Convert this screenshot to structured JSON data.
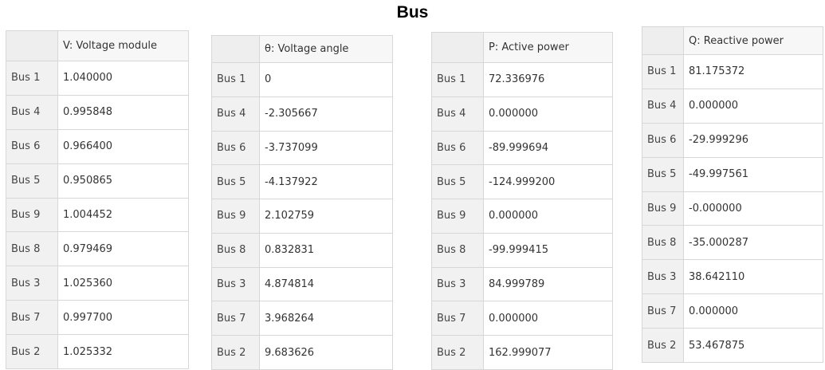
{
  "page_title": "Bus",
  "tables": [
    {
      "header": "V: Voltage module",
      "rows": [
        {
          "bus": "Bus 1",
          "value": "1.040000"
        },
        {
          "bus": "Bus 4",
          "value": "0.995848"
        },
        {
          "bus": "Bus 6",
          "value": "0.966400"
        },
        {
          "bus": "Bus 5",
          "value": "0.950865"
        },
        {
          "bus": "Bus 9",
          "value": "1.004452"
        },
        {
          "bus": "Bus 8",
          "value": "0.979469"
        },
        {
          "bus": "Bus 3",
          "value": "1.025360"
        },
        {
          "bus": "Bus 7",
          "value": "0.997700"
        },
        {
          "bus": "Bus 2",
          "value": "1.025332"
        }
      ]
    },
    {
      "header": "θ: Voltage angle",
      "rows": [
        {
          "bus": "Bus 1",
          "value": "0"
        },
        {
          "bus": "Bus 4",
          "value": "-2.305667"
        },
        {
          "bus": "Bus 6",
          "value": "-3.737099"
        },
        {
          "bus": "Bus 5",
          "value": "-4.137922"
        },
        {
          "bus": "Bus 9",
          "value": "2.102759"
        },
        {
          "bus": "Bus 8",
          "value": "0.832831"
        },
        {
          "bus": "Bus 3",
          "value": "4.874814"
        },
        {
          "bus": "Bus 7",
          "value": "3.968264"
        },
        {
          "bus": "Bus 2",
          "value": "9.683626"
        }
      ]
    },
    {
      "header": "P: Active power",
      "rows": [
        {
          "bus": "Bus 1",
          "value": "72.336976"
        },
        {
          "bus": "Bus 4",
          "value": "0.000000"
        },
        {
          "bus": "Bus 6",
          "value": "-89.999694"
        },
        {
          "bus": "Bus 5",
          "value": "-124.999200"
        },
        {
          "bus": "Bus 9",
          "value": "0.000000"
        },
        {
          "bus": "Bus 8",
          "value": "-99.999415"
        },
        {
          "bus": "Bus 3",
          "value": "84.999789"
        },
        {
          "bus": "Bus 7",
          "value": "0.000000"
        },
        {
          "bus": "Bus 2",
          "value": "162.999077"
        }
      ]
    },
    {
      "header": "Q: Reactive power",
      "rows": [
        {
          "bus": "Bus 1",
          "value": "81.175372"
        },
        {
          "bus": "Bus 4",
          "value": "0.000000"
        },
        {
          "bus": "Bus 6",
          "value": "-29.999296"
        },
        {
          "bus": "Bus 5",
          "value": "-49.997561"
        },
        {
          "bus": "Bus 9",
          "value": "-0.000000"
        },
        {
          "bus": "Bus 8",
          "value": "-35.000287"
        },
        {
          "bus": "Bus 3",
          "value": "38.642110"
        },
        {
          "bus": "Bus 7",
          "value": "0.000000"
        },
        {
          "bus": "Bus 2",
          "value": "53.467875"
        }
      ]
    }
  ]
}
